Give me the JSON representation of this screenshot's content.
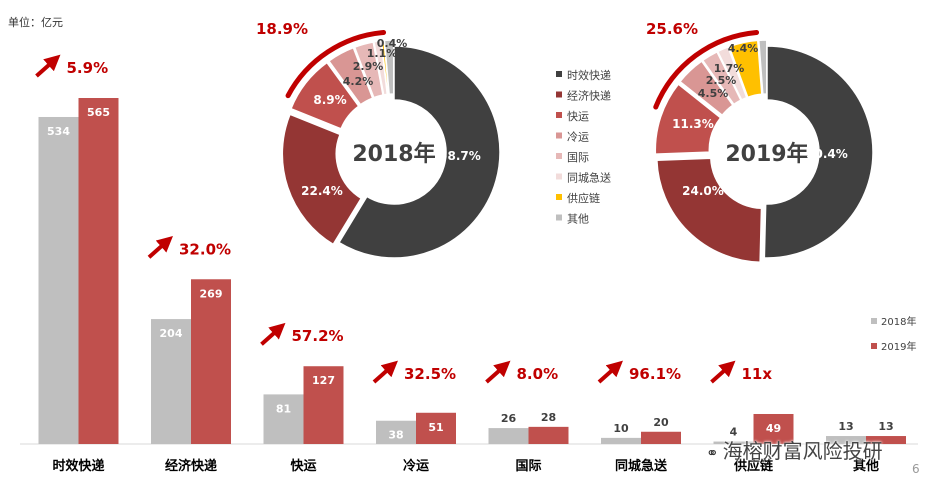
{
  "unit_label": "单位：亿元",
  "watermark": "海榕财富风险投研",
  "page_number": "6",
  "colors": {
    "bar_2018": "#bfbfbf",
    "bar_2019": "#c0504d",
    "growth": "#c00000",
    "slices": [
      "#404040",
      "#943634",
      "#c0504d",
      "#d99694",
      "#e6b8b7",
      "#f2dcdb",
      "#ffc000",
      "#bfbfbf"
    ]
  },
  "chart_data": [
    {
      "type": "bar",
      "categories": [
        "时效快递",
        "经济快递",
        "快运",
        "冷运",
        "国际",
        "同城急送",
        "供应链",
        "其他"
      ],
      "series": [
        {
          "name": "2018年",
          "values": [
            534,
            204,
            81,
            38,
            26,
            10,
            4,
            13
          ]
        },
        {
          "name": "2019年",
          "values": [
            565,
            269,
            127,
            51,
            28,
            20,
            49,
            13
          ]
        }
      ],
      "growth_labels": [
        "5.9%",
        "32.0%",
        "57.2%",
        "32.5%",
        "8.0%",
        "96.1%",
        "11x"
      ],
      "legend_position": "right",
      "grid": false
    },
    {
      "type": "pie",
      "center_label": "2018年",
      "labels": [
        "时效快递",
        "经济快递",
        "快运",
        "冷运",
        "国际",
        "同城急送",
        "供应链",
        "其他"
      ],
      "values": [
        58.7,
        22.4,
        8.9,
        4.2,
        2.9,
        1.1,
        0.4,
        1.4
      ],
      "value_labels": [
        "58.7%",
        "22.4%",
        "8.9%",
        "4.2%",
        "2.9%",
        "1.1%",
        "0.4%",
        ""
      ],
      "highlight_label": "18.9%"
    },
    {
      "type": "pie",
      "center_label": "2019年",
      "labels": [
        "时效快递",
        "经济快递",
        "快运",
        "冷运",
        "国际",
        "同城急送",
        "供应链",
        "其他"
      ],
      "values": [
        50.4,
        24.0,
        11.3,
        4.5,
        2.5,
        1.7,
        4.4,
        1.2
      ],
      "value_labels": [
        "50.4%",
        "24.0%",
        "11.3%",
        "4.5%",
        "2.5%",
        "1.7%",
        "4.4%",
        ""
      ],
      "highlight_label": "25.6%"
    }
  ]
}
